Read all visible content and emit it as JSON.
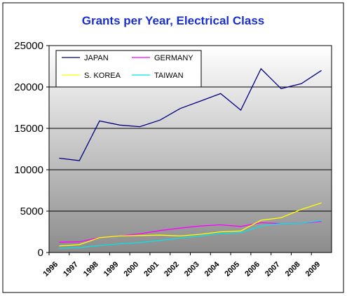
{
  "chart_data": {
    "type": "line",
    "title": "Grants per Year, Electrical Class",
    "xlabel": "",
    "ylabel": "",
    "ylim": [
      0,
      25000
    ],
    "yticks": [
      0,
      5000,
      10000,
      15000,
      20000,
      25000
    ],
    "categories": [
      "1996",
      "1997",
      "1998",
      "1999",
      "2000",
      "2001",
      "2002",
      "2003",
      "2004",
      "2005",
      "2006",
      "2007",
      "2008",
      "2009"
    ],
    "grid": true,
    "legend_position": "top-left",
    "background": "gradient white-to-gray",
    "series": [
      {
        "name": "JAPAN",
        "color": "#000080",
        "values": [
          11400,
          11100,
          15900,
          15400,
          15200,
          16000,
          17400,
          18300,
          19200,
          17200,
          22200,
          19800,
          20400,
          22000
        ]
      },
      {
        "name": "GERMANY",
        "color": "#ff00ff",
        "values": [
          1250,
          1300,
          1800,
          2000,
          2250,
          2650,
          2950,
          3200,
          3350,
          3150,
          3600,
          3500,
          3550,
          3750
        ]
      },
      {
        "name": "S. KOREA",
        "color": "#ffff00",
        "values": [
          800,
          950,
          1800,
          2000,
          2050,
          2100,
          2000,
          2200,
          2500,
          2600,
          3900,
          4200,
          5200,
          6000
        ]
      },
      {
        "name": "TAIWAN",
        "color": "#00e5e5",
        "values": [
          500,
          600,
          850,
          1050,
          1200,
          1450,
          1750,
          2000,
          2300,
          2400,
          3200,
          3500,
          3550,
          3850
        ]
      }
    ]
  }
}
